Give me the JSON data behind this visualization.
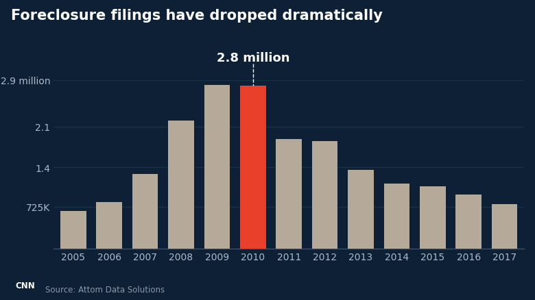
{
  "title": "Foreclosure filings have dropped dramatically",
  "subtitle": "2.8 million",
  "subtitle_year": 2010,
  "source": "Source: Attom Data Solutions",
  "years": [
    2005,
    2006,
    2007,
    2008,
    2009,
    2010,
    2011,
    2012,
    2013,
    2014,
    2015,
    2016,
    2017
  ],
  "values": [
    650000,
    800000,
    1290000,
    2200000,
    2820000,
    2800000,
    1890000,
    1850000,
    1360000,
    1120000,
    1080000,
    930000,
    775000
  ],
  "bar_colors": [
    "#b5a99a",
    "#b5a99a",
    "#b5a99a",
    "#b5a99a",
    "#b5a99a",
    "#e8402a",
    "#b5a99a",
    "#b5a99a",
    "#b5a99a",
    "#b5a99a",
    "#b5a99a",
    "#b5a99a",
    "#b5a99a"
  ],
  "background_color": "#0d2035",
  "text_color": "#ffffff",
  "grid_color": "#1a3248",
  "axis_color": "#ffffff",
  "ytick_labels": [
    "725K",
    "1.4",
    "2.1",
    "2.9 million"
  ],
  "ytick_values": [
    725000,
    1400000,
    2100000,
    2900000
  ],
  "ylim": [
    0,
    3100000
  ],
  "title_fontsize": 15,
  "subtitle_fontsize": 13,
  "tick_fontsize": 10,
  "source_fontsize": 8.5,
  "cnn_color": "#cc0000"
}
